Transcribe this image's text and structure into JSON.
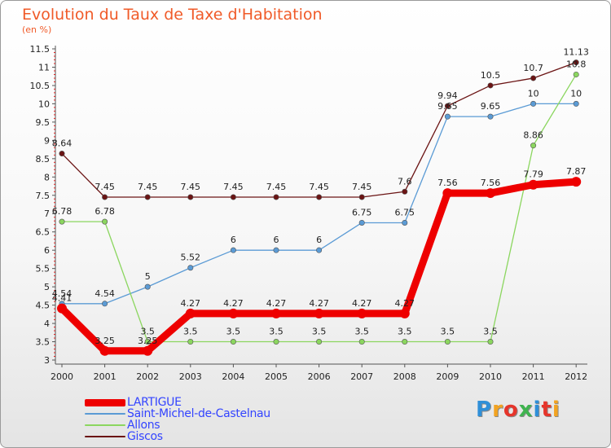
{
  "header": {
    "title": "Evolution du Taux de Taxe d'Habitation",
    "subtitle": "(en %)"
  },
  "chart_data": {
    "type": "line",
    "title": "Evolution du Taux de Taxe d'Habitation",
    "subtitle": "(en %)",
    "xlabel": "",
    "ylabel": "",
    "x": [
      "2000",
      "2001",
      "2002",
      "2003",
      "2004",
      "2005",
      "2006",
      "2007",
      "2008",
      "2009",
      "2010",
      "2011",
      "2012"
    ],
    "ylim": [
      3,
      11.5
    ],
    "yticks": [
      "3",
      "3.5",
      "4",
      "4.5",
      "5",
      "5.5",
      "6",
      "6.5",
      "7",
      "7.5",
      "8",
      "8.5",
      "9",
      "9.5",
      "10",
      "10.5",
      "11",
      "11.5"
    ],
    "grid": false,
    "legend_position": "bottom-left",
    "series": [
      {
        "name": "Giscos",
        "color": "#6b1414",
        "values": [
          8.64,
          7.45,
          7.45,
          7.45,
          7.45,
          7.45,
          7.45,
          7.45,
          7.6,
          9.94,
          10.5,
          10.7,
          11.13
        ],
        "labels": [
          "8.64",
          "7.45",
          "7.45",
          "7.45",
          "7.45",
          "7.45",
          "7.45",
          "7.45",
          "7.6",
          "9.94",
          "10.5",
          "10.7",
          "11.13"
        ]
      },
      {
        "name": "Saint-Michel-de-Castelnau",
        "color": "#5b9bd5",
        "values": [
          4.54,
          4.54,
          5,
          5.52,
          6,
          6,
          6,
          6.75,
          6.75,
          9.65,
          9.65,
          10,
          10
        ],
        "labels": [
          "4.54",
          "4.54",
          "5",
          "5.52",
          "6",
          "6",
          "6",
          "6.75",
          "6.75",
          "9.65",
          "9.65",
          "10",
          "10"
        ]
      },
      {
        "name": "Allons",
        "color": "#8bd65f",
        "values": [
          6.78,
          6.78,
          3.5,
          3.5,
          3.5,
          3.5,
          3.5,
          3.5,
          3.5,
          3.5,
          3.5,
          8.86,
          10.8
        ],
        "labels": [
          "6.78",
          "6.78",
          "3.5",
          "3.5",
          "3.5",
          "3.5",
          "3.5",
          "3.5",
          "3.5",
          "3.5",
          "3.5",
          "8.86",
          "10.8"
        ]
      },
      {
        "name": "LARTIGUE",
        "color": "#ee0000",
        "values": [
          4.41,
          3.25,
          3.25,
          4.27,
          4.27,
          4.27,
          4.27,
          4.27,
          4.27,
          7.56,
          7.56,
          7.79,
          7.87
        ],
        "labels": [
          "4.41",
          "3.25",
          "3.25",
          "4.27",
          "4.27",
          "4.27",
          "4.27",
          "4.27",
          "4.27",
          "7.56",
          "7.56",
          "7.79",
          "7.87"
        ]
      }
    ]
  },
  "legend": {
    "items": [
      {
        "label": "LARTIGUE",
        "color": "#ee0000"
      },
      {
        "label": "Saint-Michel-de-Castelnau",
        "color": "#5b9bd5"
      },
      {
        "label": "Allons",
        "color": "#8bd65f"
      },
      {
        "label": "Giscos",
        "color": "#6b1414"
      }
    ]
  },
  "logo": {
    "text": "Proxiti",
    "letter_colors": [
      "#2f8fd8",
      "#f2a321",
      "#e6352b",
      "#3fb34f",
      "#2f8fd8",
      "#e6352b",
      "#f2a321"
    ]
  }
}
